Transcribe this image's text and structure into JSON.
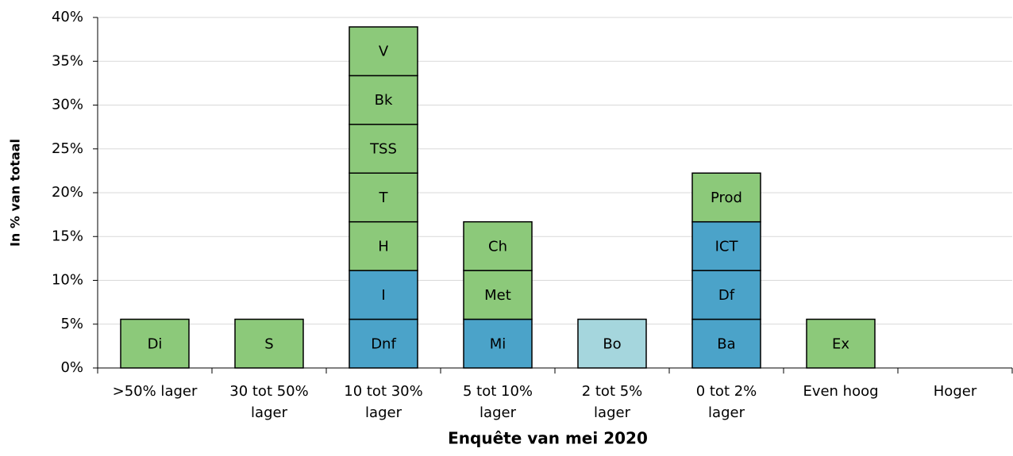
{
  "chart_data": {
    "type": "stacked-bar",
    "x_label": "Enquête van mei 2020",
    "y_label": "In % van totaal",
    "categories": [
      ">50% lager",
      "30 tot 50% lager",
      "10 tot 30% lager",
      "5 tot 10% lager",
      "2 tot 5% lager",
      "0 tot 2% lager",
      "Even hoog",
      "Hoger"
    ],
    "stacks": [
      [
        {
          "label": "Di",
          "value": 5.56,
          "color": "#8cc97a"
        }
      ],
      [
        {
          "label": "S",
          "value": 5.56,
          "color": "#8cc97a"
        }
      ],
      [
        {
          "label": "Dnf",
          "value": 5.56,
          "color": "#4ba3c9"
        },
        {
          "label": "I",
          "value": 5.56,
          "color": "#4ba3c9"
        },
        {
          "label": "H",
          "value": 5.56,
          "color": "#8cc97a"
        },
        {
          "label": "T",
          "value": 5.56,
          "color": "#8cc97a"
        },
        {
          "label": "TSS",
          "value": 5.56,
          "color": "#8cc97a"
        },
        {
          "label": "Bk",
          "value": 5.56,
          "color": "#8cc97a"
        },
        {
          "label": "V",
          "value": 5.56,
          "color": "#8cc97a"
        }
      ],
      [
        {
          "label": "Mi",
          "value": 5.56,
          "color": "#4ba3c9"
        },
        {
          "label": "Met",
          "value": 5.56,
          "color": "#8cc97a"
        },
        {
          "label": "Ch",
          "value": 5.56,
          "color": "#8cc97a"
        }
      ],
      [
        {
          "label": "Bo",
          "value": 5.56,
          "color": "#a5d6dd"
        }
      ],
      [
        {
          "label": "Ba",
          "value": 5.56,
          "color": "#4ba3c9"
        },
        {
          "label": "Df",
          "value": 5.56,
          "color": "#4ba3c9"
        },
        {
          "label": "ICT",
          "value": 5.56,
          "color": "#4ba3c9"
        },
        {
          "label": "Prod",
          "value": 5.56,
          "color": "#8cc97a"
        }
      ],
      [
        {
          "label": "Ex",
          "value": 5.56,
          "color": "#8cc97a"
        }
      ],
      []
    ],
    "ylim": [
      0,
      40
    ],
    "yticks": [
      {
        "value": 0,
        "label": "0%"
      },
      {
        "value": 5,
        "label": "5%"
      },
      {
        "value": 10,
        "label": "10%"
      },
      {
        "value": 15,
        "label": "15%"
      },
      {
        "value": 20,
        "label": "20%"
      },
      {
        "value": 25,
        "label": "25%"
      },
      {
        "value": 30,
        "label": "30%"
      },
      {
        "value": 35,
        "label": "35%"
      },
      {
        "value": 40,
        "label": "40%"
      }
    ],
    "grid": true
  }
}
